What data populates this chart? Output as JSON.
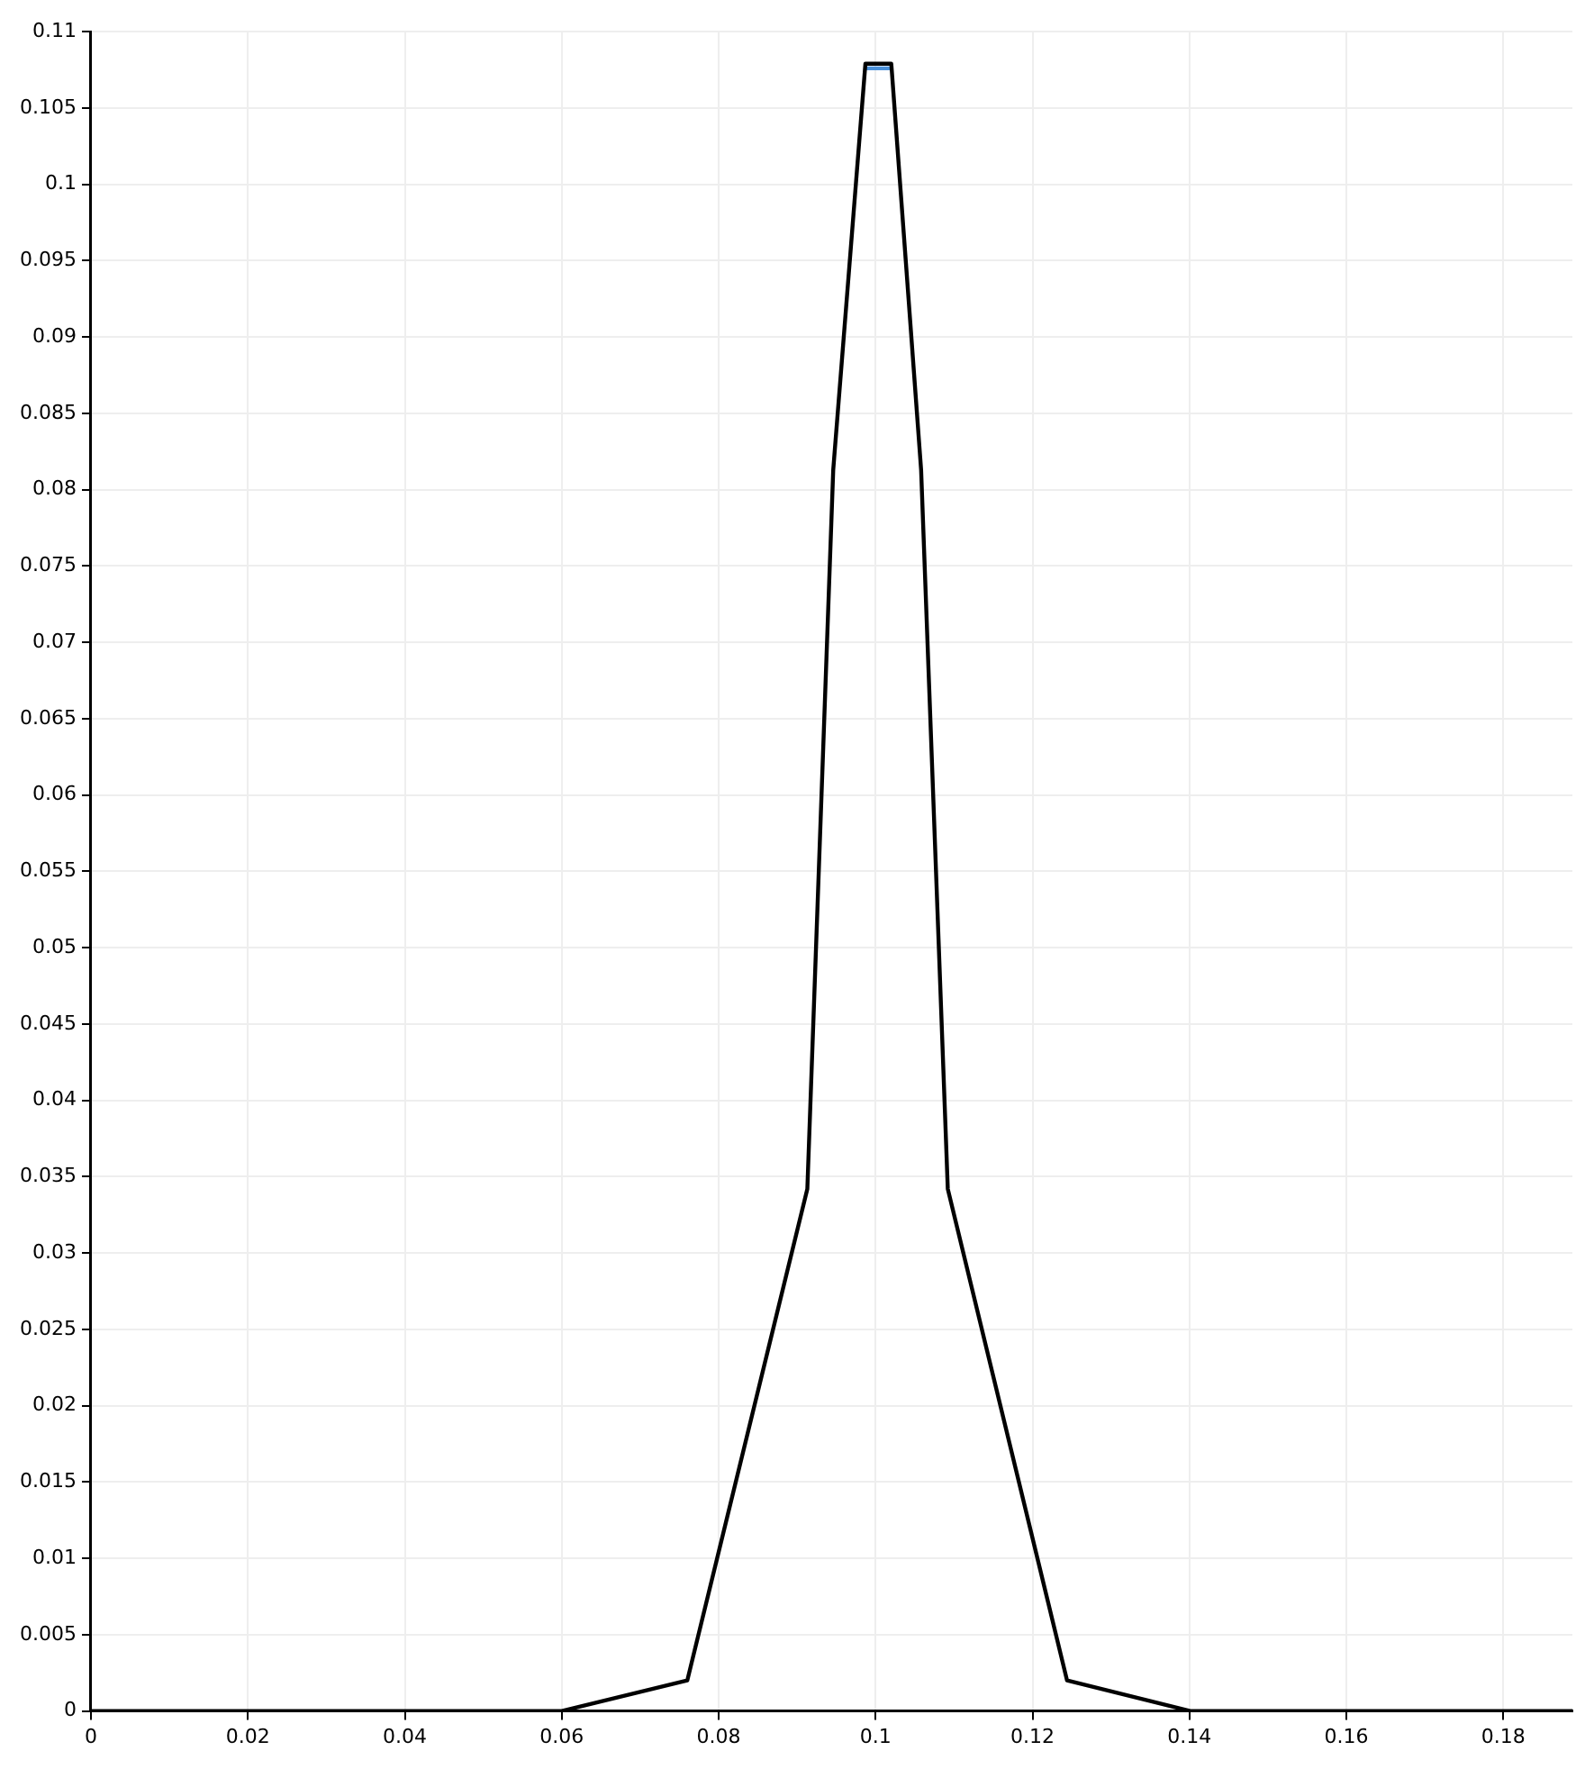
{
  "chart_data": {
    "type": "line",
    "series": [
      {
        "color": "#000000",
        "x": [
          0,
          0.06,
          0.076,
          0.0913,
          0.0946,
          0.0987,
          0.102,
          0.1058,
          0.1092,
          0.1244,
          0.1401,
          0.1888
        ],
        "values": [
          0,
          0,
          0.002,
          0.0342,
          0.0813,
          0.1079,
          0.1079,
          0.0813,
          0.0342,
          0.002,
          0,
          0
        ]
      },
      {
        "color": "#4a90d9",
        "x": [
          0.0987,
          0.102
        ],
        "values": [
          0.1076,
          0.1076
        ]
      }
    ],
    "xlim": [
      0,
      0.1888
    ],
    "xticks": [
      0,
      0.02,
      0.04,
      0.06,
      0.08,
      0.1,
      0.12,
      0.14,
      0.16,
      0.18
    ],
    "ylim": [
      0,
      0.11
    ],
    "yticks": [
      0,
      0.005,
      0.01,
      0.015,
      0.02,
      0.025,
      0.03,
      0.035,
      0.04,
      0.045,
      0.05,
      0.055,
      0.06,
      0.065,
      0.07,
      0.075,
      0.08,
      0.085,
      0.09,
      0.095,
      0.1,
      0.105,
      0.11
    ],
    "grid": true,
    "marker": "none",
    "line_style": "solid",
    "legend": false
  }
}
